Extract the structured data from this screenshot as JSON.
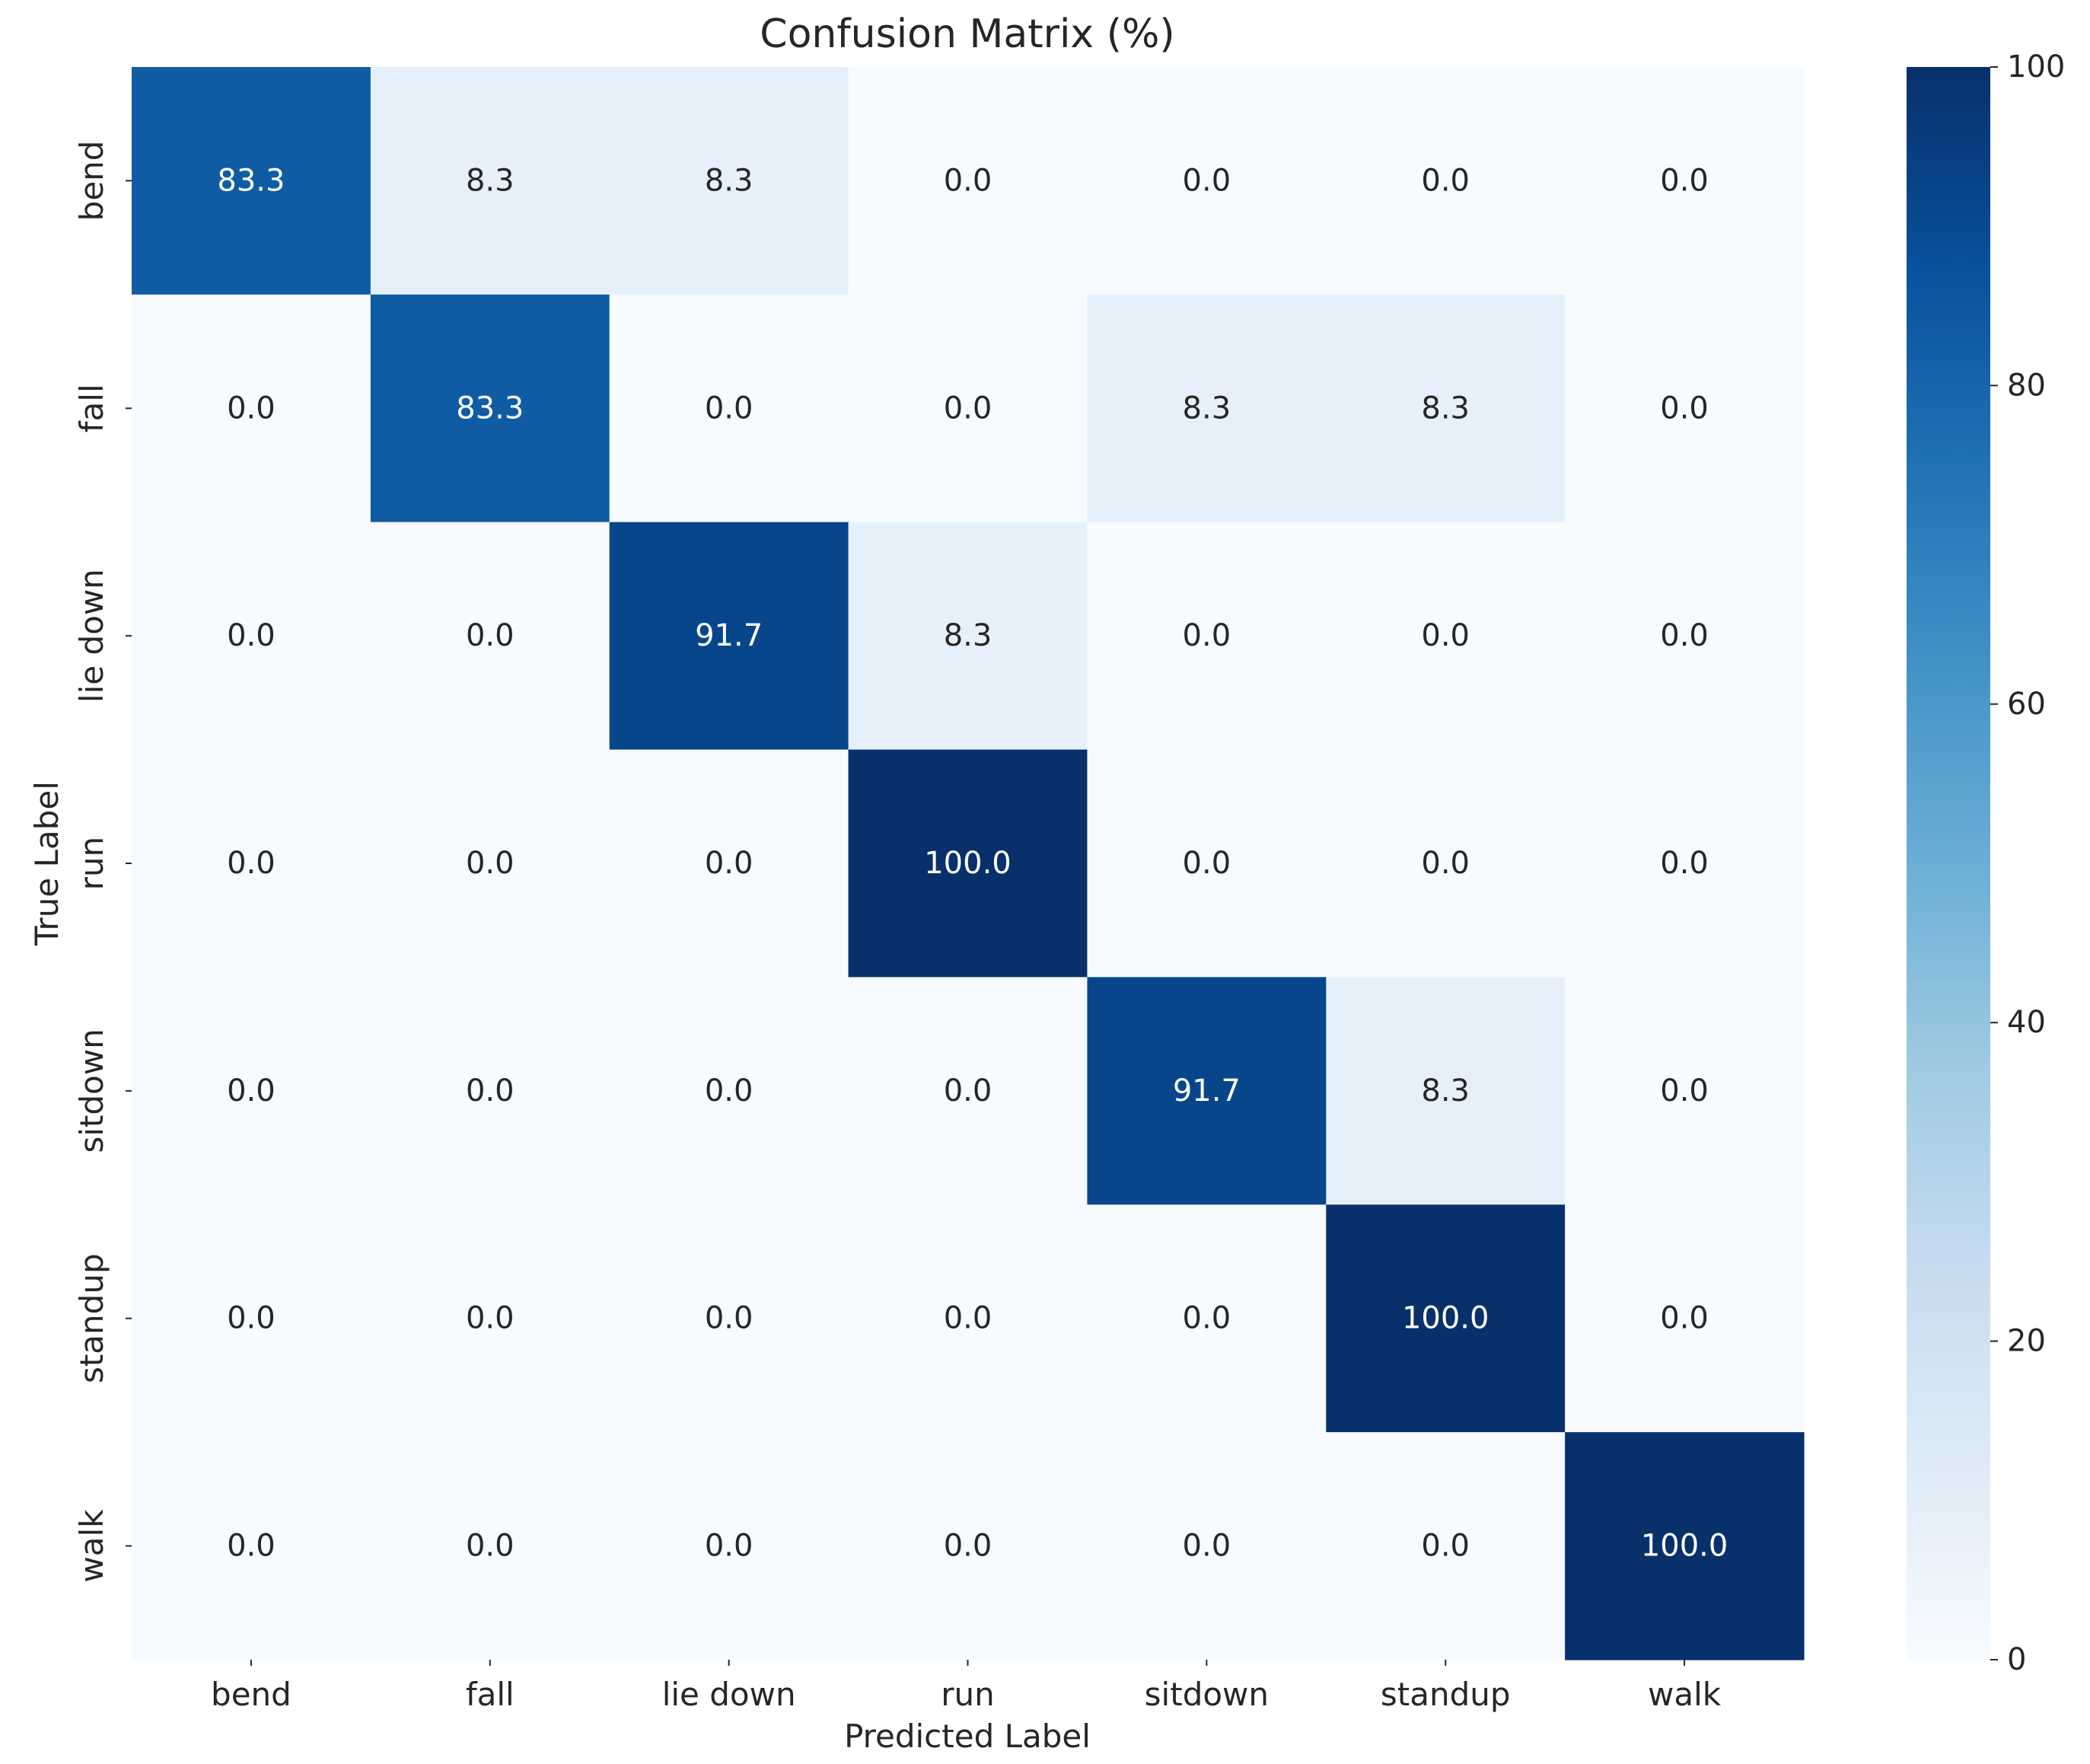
{
  "chart_data": {
    "type": "heatmap",
    "title": "Confusion Matrix (%)",
    "xlabel": "Predicted Label",
    "ylabel": "True Label",
    "x_categories": [
      "bend",
      "fall",
      "lie down",
      "run",
      "sitdown",
      "standup",
      "walk"
    ],
    "y_categories": [
      "bend",
      "fall",
      "lie down",
      "run",
      "sitdown",
      "standup",
      "walk"
    ],
    "values": [
      [
        83.3,
        8.3,
        8.3,
        0.0,
        0.0,
        0.0,
        0.0
      ],
      [
        0.0,
        83.3,
        0.0,
        0.0,
        8.3,
        8.3,
        0.0
      ],
      [
        0.0,
        0.0,
        91.7,
        8.3,
        0.0,
        0.0,
        0.0
      ],
      [
        0.0,
        0.0,
        0.0,
        100.0,
        0.0,
        0.0,
        0.0
      ],
      [
        0.0,
        0.0,
        0.0,
        0.0,
        91.7,
        8.3,
        0.0
      ],
      [
        0.0,
        0.0,
        0.0,
        0.0,
        0.0,
        100.0,
        0.0
      ],
      [
        0.0,
        0.0,
        0.0,
        0.0,
        0.0,
        0.0,
        100.0
      ]
    ],
    "value_range": [
      0,
      100
    ],
    "colormap": "Blues",
    "colorbar_ticks": [
      0,
      20,
      40,
      60,
      80,
      100
    ],
    "grid": false,
    "colorbar_position": "right"
  }
}
